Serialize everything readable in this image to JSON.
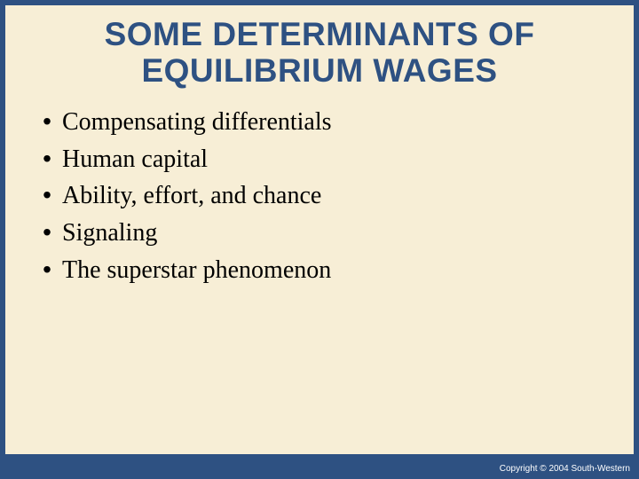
{
  "slide": {
    "background_color": "#2e5182",
    "panel_color": "#f7eed6",
    "title": {
      "line1": "SOME DETERMINANTS OF",
      "line2": "EQUILIBRIUM WAGES",
      "color": "#2e5182",
      "font_family": "Arial",
      "font_size_pt": 28,
      "font_weight": "bold"
    },
    "bullets": {
      "marker": "•",
      "marker_color": "#000000",
      "text_color": "#000000",
      "text_font_family": "Times New Roman",
      "text_font_size_pt": 21,
      "items": [
        "Compensating differentials",
        "Human capital",
        "Ability, effort, and chance",
        "Signaling",
        "The superstar phenomenon"
      ]
    },
    "copyright": {
      "text": "Copyright © 2004 South-Western",
      "color": "#ffffff",
      "font_size_pt": 8
    }
  }
}
